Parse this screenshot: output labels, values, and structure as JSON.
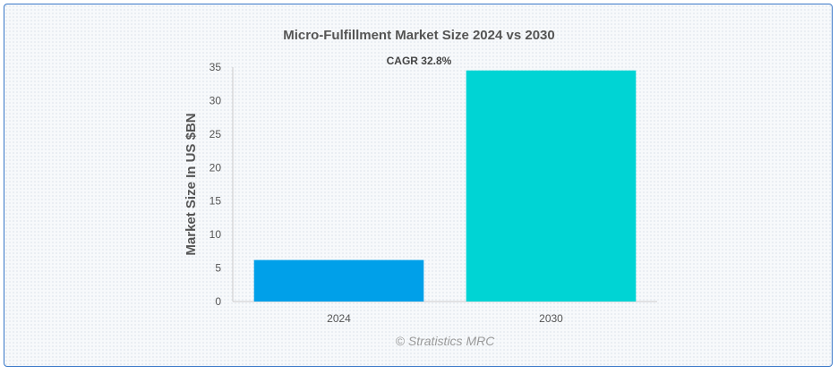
{
  "chart_data": {
    "type": "bar",
    "title": "Micro-Fulfillment Market Size 2024 vs 2030",
    "xlabel": "",
    "ylabel": "Market Size In US $BN",
    "categories": [
      "2024",
      "2030"
    ],
    "values": [
      6.2,
      34.5
    ],
    "colors": [
      "#00a0e9",
      "#00d4d4"
    ],
    "ylim": [
      0,
      35
    ],
    "yticks": [
      "0",
      "5",
      "10",
      "15",
      "20",
      "25",
      "30",
      "35"
    ],
    "annotation": "CAGR 32.8%",
    "grid": false,
    "legend": "none"
  },
  "credit": "© Stratistics MRC"
}
